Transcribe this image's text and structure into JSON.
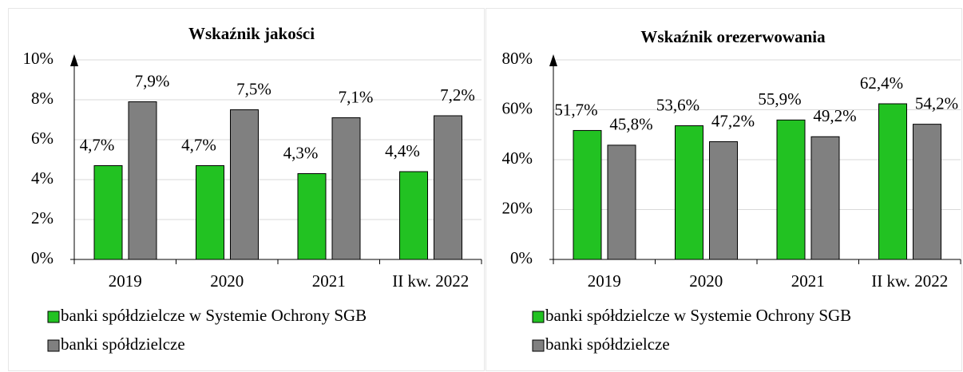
{
  "chart_data": [
    {
      "type": "bar",
      "title": "Wskaźnik jakości",
      "categories": [
        "2019",
        "2020",
        "2021",
        "II kw. 2022"
      ],
      "series": [
        {
          "name": "banki spółdzielcze w Systemie Ochrony SGB",
          "color": "#22c222",
          "values": [
            4.7,
            4.7,
            4.3,
            4.4
          ],
          "value_labels": [
            "4,7%",
            "4,7%",
            "4,3%",
            "4,4%"
          ]
        },
        {
          "name": "banki spółdzielcze",
          "color": "#808080",
          "values": [
            7.9,
            7.5,
            7.1,
            7.2
          ],
          "value_labels": [
            "7,9%",
            "7,5%",
            "7,1%",
            "7,2%"
          ]
        }
      ],
      "ylim": [
        0,
        10
      ],
      "yticks": [
        {
          "value": 0,
          "label": "0%"
        },
        {
          "value": 2,
          "label": "2%"
        },
        {
          "value": 4,
          "label": "4%"
        },
        {
          "value": 6,
          "label": "6%"
        },
        {
          "value": 8,
          "label": "8%"
        },
        {
          "value": 10,
          "label": "10%"
        }
      ],
      "grid": true
    },
    {
      "type": "bar",
      "title": "Wskaźnik orezerwowania",
      "categories": [
        "2019",
        "2020",
        "2021",
        "II kw. 2022"
      ],
      "series": [
        {
          "name": "banki spółdzielcze w Systemie Ochrony SGB",
          "color": "#22c222",
          "values": [
            51.7,
            53.6,
            55.9,
            62.4
          ],
          "value_labels": [
            "51,7%",
            "53,6%",
            "55,9%",
            "62,4%"
          ]
        },
        {
          "name": "banki spółdzielcze",
          "color": "#808080",
          "values": [
            45.8,
            47.2,
            49.2,
            54.2
          ],
          "value_labels": [
            "45,8%",
            "47,2%",
            "49,2%",
            "54,2%"
          ]
        }
      ],
      "ylim": [
        0,
        80
      ],
      "yticks": [
        {
          "value": 0,
          "label": "0%"
        },
        {
          "value": 20,
          "label": "20%"
        },
        {
          "value": 40,
          "label": "40%"
        },
        {
          "value": 60,
          "label": "60%"
        },
        {
          "value": 80,
          "label": "80%"
        }
      ],
      "grid": true
    }
  ]
}
